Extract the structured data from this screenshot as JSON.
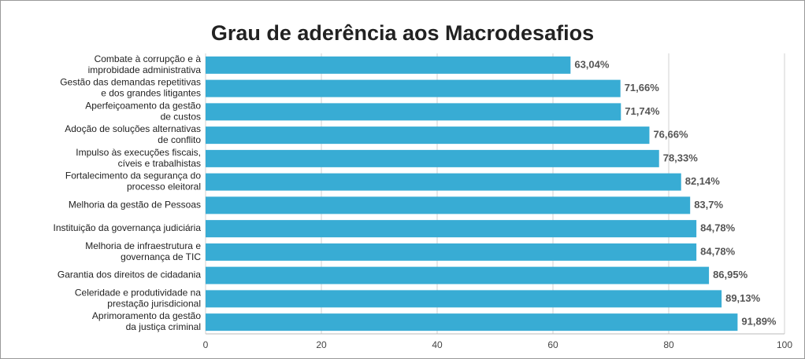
{
  "chart_data": {
    "type": "bar",
    "orientation": "horizontal",
    "title": "Grau de aderência aos Macrodesafios",
    "categories": [
      [
        "Combate à corrupção e à",
        "improbidade administrativa"
      ],
      [
        "Gestão das demandas repetitivas",
        "e dos grandes litigantes"
      ],
      [
        "Aperfeiçoamento da gestão",
        "de custos"
      ],
      [
        "Adoção de soluções alternativas",
        "de conflito"
      ],
      [
        "Impulso às execuções fiscais,",
        "cíveis e trabalhistas"
      ],
      [
        "Fortalecimento da segurança do",
        "processo eleitoral"
      ],
      [
        "Melhoria da gestão de Pessoas"
      ],
      [
        "Instituição da governança judiciária"
      ],
      [
        "Melhoria de infraestrutura e",
        "governança de TIC"
      ],
      [
        "Garantia dos direitos de cidadania"
      ],
      [
        "Celeridade e produtividade na",
        "prestação jurisdicional"
      ],
      [
        "Aprimoramento da gestão",
        "da justiça criminal"
      ]
    ],
    "values": [
      63.04,
      71.66,
      71.74,
      76.66,
      78.33,
      82.14,
      83.7,
      84.78,
      84.78,
      86.95,
      89.13,
      91.89
    ],
    "value_labels": [
      "63,04%",
      "71,66%",
      "71,74%",
      "76,66%",
      "78,33%",
      "82,14%",
      "83,7%",
      "84,78%",
      "84,78%",
      "86,95%",
      "89,13%",
      "91,89%"
    ],
    "color": "#38acd4",
    "xlim": [
      0,
      100
    ],
    "xticks": [
      0,
      20,
      40,
      60,
      80,
      100
    ],
    "grid": true
  }
}
